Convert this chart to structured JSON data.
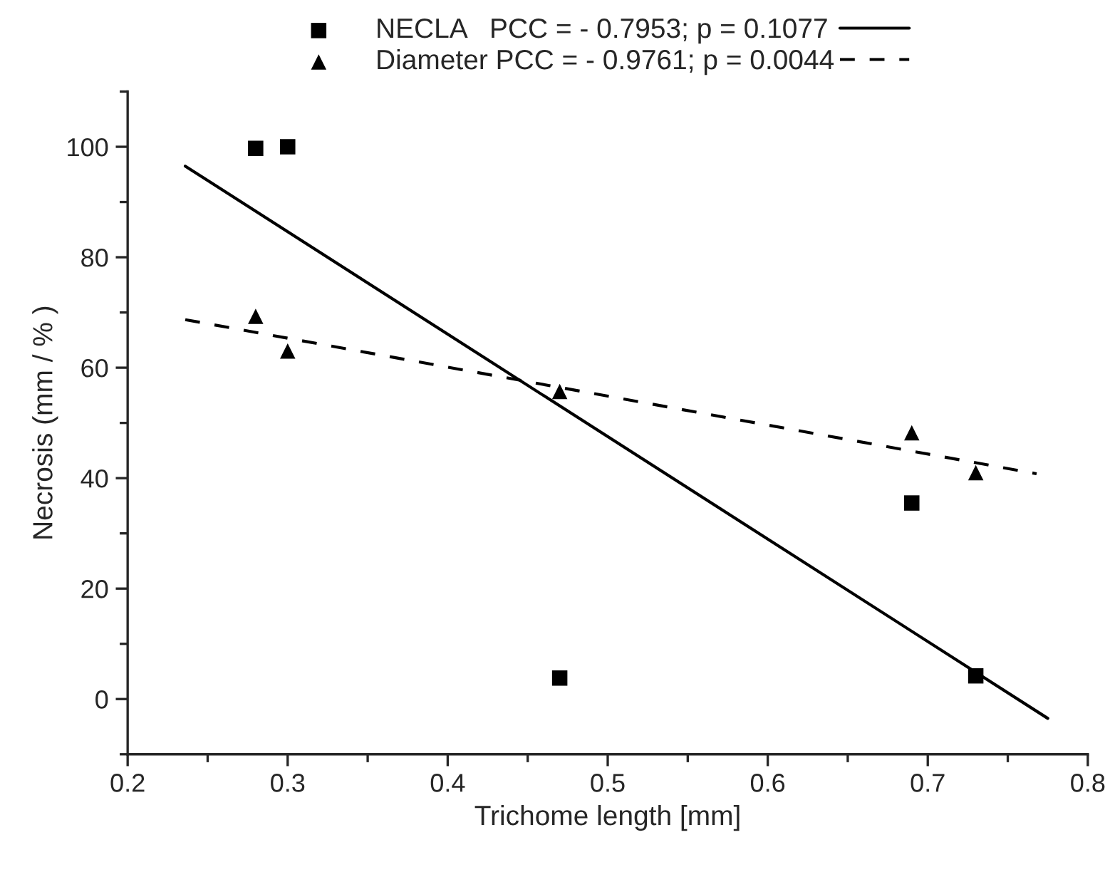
{
  "chart_data": {
    "type": "scatter",
    "xlabel": "Trichome length [mm]",
    "ylabel": "Necrosis (mm / % )",
    "xlim": [
      0.2,
      0.8
    ],
    "xticks": [
      0.2,
      0.3,
      0.4,
      0.5,
      0.6,
      0.7,
      0.8
    ],
    "ylim": [
      -10,
      110
    ],
    "yticks": [
      0,
      20,
      40,
      60,
      80,
      100
    ],
    "grid": false,
    "legend": "top",
    "series": [
      {
        "name": "NECLA   PCC = - 0.7953; p = 0.1077",
        "marker": "square",
        "color": "#000000",
        "x": [
          0.28,
          0.3,
          0.47,
          0.69,
          0.73
        ],
        "values": [
          99.7,
          100,
          3.8,
          35.5,
          4.2
        ]
      },
      {
        "name": "Diameter PCC = - 0.9761; p = 0.0044",
        "marker": "triangle",
        "color": "#000000",
        "x": [
          0.28,
          0.3,
          0.47,
          0.69,
          0.73
        ],
        "values": [
          69.3,
          63,
          55.7,
          48.2,
          41
        ]
      },
      {
        "type": "line",
        "line_style": "solid",
        "marker": "none",
        "color": "#000000",
        "x": [
          0.236,
          0.775
        ],
        "values": [
          96.5,
          -3.5
        ]
      },
      {
        "type": "line",
        "line_style": "dashed",
        "marker": "none",
        "color": "#000000",
        "x": [
          0.236,
          0.768
        ],
        "values": [
          68.7,
          40.8
        ]
      }
    ]
  }
}
